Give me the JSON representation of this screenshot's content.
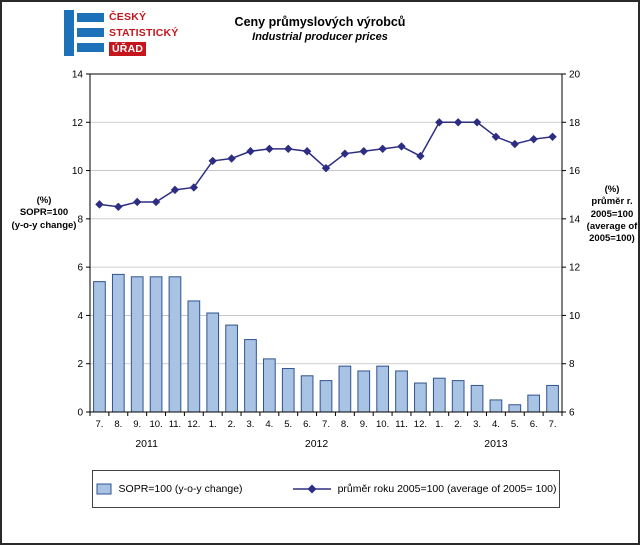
{
  "header": {
    "logo": {
      "line1": "ČESKÝ",
      "line2": "STATISTICKÝ",
      "line3": "ÚŘAD"
    },
    "title": "Ceny průmyslových výrobců",
    "subtitle": "Industrial producer prices"
  },
  "axes": {
    "left_label": "(%)\nSOPR=100\n(y-o-y change)",
    "right_label": "(%)\nprůměr r.\n2005=100\n(average of\n2005=100)"
  },
  "legend": {
    "bar_label": "SOPR=100 (y-o-y change)",
    "line_label": "průměr roku 2005=100 (average of 2005= 100)"
  },
  "colors": {
    "logo_blue": "#1D71B8",
    "logo_red": "#C4161C",
    "grid": "#BFBFBF"
  },
  "chart_data": {
    "type": "bar",
    "subtype": "bar+line combo, dual y-axes",
    "title": "Ceny průmyslových výrobců / Industrial producer prices",
    "categories": [
      "7.",
      "8.",
      "9.",
      "10.",
      "11.",
      "12.",
      "1.",
      "2.",
      "3.",
      "4.",
      "5.",
      "6.",
      "7.",
      "8.",
      "9.",
      "10.",
      "11.",
      "12.",
      "1.",
      "2.",
      "3.",
      "4.",
      "5.",
      "6.",
      "7."
    ],
    "year_groups": [
      {
        "label": "2011",
        "start": 0,
        "end": 5
      },
      {
        "label": "2012",
        "start": 6,
        "end": 17
      },
      {
        "label": "2013",
        "start": 18,
        "end": 24
      }
    ],
    "series": [
      {
        "name": "SOPR=100 (y-o-y change)",
        "type": "bar",
        "axis": "left",
        "values": [
          5.4,
          5.7,
          5.6,
          5.6,
          5.6,
          4.6,
          4.1,
          3.6,
          3.0,
          2.2,
          1.8,
          1.5,
          1.3,
          1.9,
          1.7,
          1.9,
          1.7,
          1.2,
          1.4,
          1.3,
          1.1,
          0.5,
          0.3,
          0.7,
          1.1
        ],
        "fill": "#A8C3E4",
        "stroke": "#31538F"
      },
      {
        "name": "průměr roku 2005=100 (average of 2005= 100)",
        "type": "line",
        "axis": "right",
        "values": [
          14.6,
          14.5,
          14.7,
          14.7,
          15.2,
          15.3,
          16.4,
          16.5,
          16.8,
          16.9,
          16.9,
          16.8,
          16.1,
          16.7,
          16.8,
          16.9,
          17.0,
          16.6,
          18.0,
          18.0,
          18.0,
          17.4,
          17.1,
          17.3,
          17.4
        ],
        "color": "#2D2E83",
        "marker": "diamond"
      }
    ],
    "left_axis": {
      "min": 0,
      "max": 14,
      "step": 2,
      "label": "(%) SOPR=100 (y-o-y change)"
    },
    "right_axis": {
      "min": 6,
      "max": 20,
      "step": 2,
      "label": "(%) průměr r. 2005=100 (average of 2005=100)"
    },
    "grid": true,
    "legend_position": "bottom"
  }
}
